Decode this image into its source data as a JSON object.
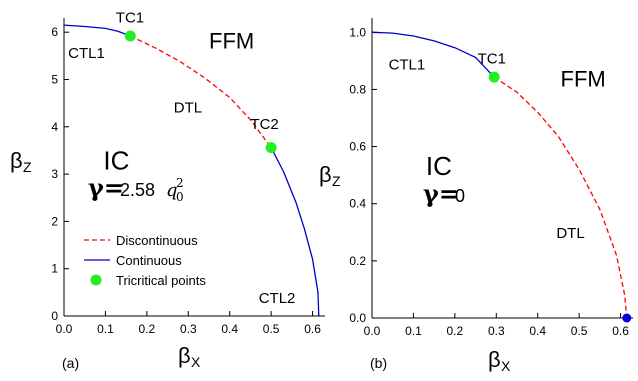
{
  "chart_data": [
    {
      "type": "line",
      "panel_label": "(a)",
      "xlabel": "β",
      "xlabel_sub": "X",
      "ylabel": "β",
      "ylabel_sub": "Z",
      "xlim": [
        0,
        0.63
      ],
      "ylim": [
        0,
        6.3
      ],
      "xticks": [
        0.0,
        0.1,
        0.2,
        0.3,
        0.4,
        0.5,
        0.6
      ],
      "xtick_labels": [
        "0.0",
        "0.1",
        "0.2",
        "0.3",
        "0.4",
        "0.5",
        "0.6"
      ],
      "yticks": [
        0,
        1,
        2,
        3,
        4,
        5,
        6
      ],
      "ytick_labels": [
        "0",
        "1",
        "2",
        "3",
        "4",
        "5",
        "6"
      ],
      "gamma": {
        "symbol": "γ=",
        "value": "2.58",
        "var": "q",
        "sub": "0",
        "sup": "2"
      },
      "series": [
        {
          "name": "Continuous",
          "style": "solid",
          "color": "#0000cc",
          "x": [
            0.0,
            0.05,
            0.1,
            0.13,
            0.16
          ],
          "y": [
            6.15,
            6.12,
            6.08,
            6.02,
            5.92
          ]
        },
        {
          "name": "Discontinuous",
          "style": "dashed",
          "color": "#ff0000",
          "x": [
            0.16,
            0.22,
            0.28,
            0.34,
            0.4,
            0.45,
            0.5
          ],
          "y": [
            5.92,
            5.67,
            5.38,
            5.03,
            4.62,
            4.15,
            3.56
          ]
        },
        {
          "name": "Continuous",
          "style": "solid",
          "color": "#0000cc",
          "x": [
            0.5,
            0.53,
            0.56,
            0.58,
            0.6,
            0.613,
            0.615
          ],
          "y": [
            3.56,
            3.05,
            2.4,
            1.85,
            1.2,
            0.5,
            0.0
          ]
        }
      ],
      "points": [
        {
          "label": "TC1",
          "x": 0.16,
          "y": 5.92,
          "color": "#22ee22"
        },
        {
          "label": "TC2",
          "x": 0.5,
          "y": 3.56,
          "color": "#22ee22"
        }
      ],
      "annotations": [
        {
          "text": "CTL1",
          "x": 0.01,
          "y": 5.45
        },
        {
          "text": "TC1",
          "x": 0.125,
          "y": 6.2
        },
        {
          "text": "FFM",
          "x": 0.35,
          "y": 5.65
        },
        {
          "text": "DTL",
          "x": 0.265,
          "y": 4.3
        },
        {
          "text": "TC2",
          "x": 0.45,
          "y": 3.95
        },
        {
          "text": "IC",
          "x": 0.095,
          "y": 3.1
        },
        {
          "text": "CTL2",
          "x": 0.47,
          "y": 0.28
        }
      ],
      "legend": [
        {
          "label": "Discontinuous",
          "style": "dashed",
          "color": "#ff0000"
        },
        {
          "label": "Continuous",
          "style": "solid",
          "color": "#0000cc"
        },
        {
          "label": "Tricritical points",
          "style": "marker",
          "color": "#22ee22"
        }
      ],
      "legend_position": "bottom-left",
      "grid": false
    },
    {
      "type": "line",
      "panel_label": "(b)",
      "xlabel": "β",
      "xlabel_sub": "X",
      "ylabel": "β",
      "ylabel_sub": "Z",
      "xlim": [
        0,
        0.63
      ],
      "ylim": [
        0,
        1.05
      ],
      "xticks": [
        0.0,
        0.1,
        0.2,
        0.3,
        0.4,
        0.5,
        0.6
      ],
      "xtick_labels": [
        "0.0",
        "0.1",
        "0.2",
        "0.3",
        "0.4",
        "0.5",
        "0.6"
      ],
      "yticks": [
        0.0,
        0.2,
        0.4,
        0.6,
        0.8,
        1.0
      ],
      "ytick_labels": [
        "0.0",
        "0.2",
        "0.4",
        "0.6",
        "0.8",
        "1.0"
      ],
      "gamma": {
        "symbol": "γ=",
        "value": "0"
      },
      "series": [
        {
          "name": "Continuous",
          "style": "solid",
          "color": "#0000cc",
          "x": [
            0.0,
            0.05,
            0.1,
            0.15,
            0.2,
            0.25,
            0.295
          ],
          "y": [
            1.0,
            0.997,
            0.987,
            0.97,
            0.946,
            0.912,
            0.843
          ]
        },
        {
          "name": "Discontinuous",
          "style": "dashed",
          "color": "#ff0000",
          "x": [
            0.295,
            0.35,
            0.4,
            0.45,
            0.5,
            0.55,
            0.59,
            0.61,
            0.615
          ],
          "y": [
            0.843,
            0.79,
            0.72,
            0.635,
            0.52,
            0.38,
            0.22,
            0.08,
            0.0
          ]
        }
      ],
      "points": [
        {
          "label": "TC1",
          "x": 0.295,
          "y": 0.843,
          "color": "#22ee22"
        },
        {
          "label": "",
          "x": 0.615,
          "y": 0.0,
          "color": "#0000dd"
        }
      ],
      "annotations": [
        {
          "text": "CTL1",
          "x": 0.04,
          "y": 0.87
        },
        {
          "text": "TC1",
          "x": 0.255,
          "y": 0.89
        },
        {
          "text": "FFM",
          "x": 0.455,
          "y": 0.81
        },
        {
          "text": "IC",
          "x": 0.13,
          "y": 0.5
        },
        {
          "text": "DTL",
          "x": 0.445,
          "y": 0.28
        }
      ],
      "grid": false
    }
  ]
}
